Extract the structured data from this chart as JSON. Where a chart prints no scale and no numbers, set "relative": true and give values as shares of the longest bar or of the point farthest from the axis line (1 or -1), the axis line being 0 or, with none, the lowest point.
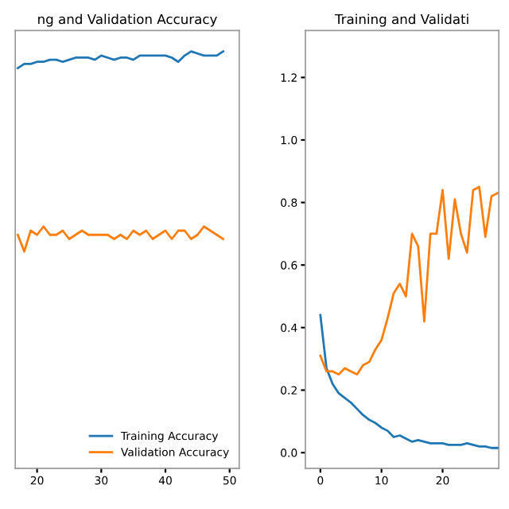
{
  "chart_data": [
    {
      "type": "line",
      "title": "ng and Validation Accuracy",
      "relative": true,
      "tick_labels": "x",
      "legend": "bottom right",
      "x": [
        17,
        18,
        19,
        20,
        21,
        22,
        23,
        24,
        25,
        26,
        27,
        28,
        29,
        30,
        31,
        32,
        33,
        34,
        35,
        36,
        37,
        38,
        39,
        40,
        41,
        42,
        43,
        44,
        45,
        46,
        47,
        48,
        49
      ],
      "xlim": [
        16.6,
        51.5
      ],
      "xticks": [
        20,
        30,
        40,
        50
      ],
      "series": [
        {
          "name": "Training Accuracy",
          "color": "#1f77b4",
          "values": [
            0.96,
            0.97,
            0.97,
            0.975,
            0.975,
            0.98,
            0.98,
            0.975,
            0.98,
            0.985,
            0.985,
            0.985,
            0.98,
            0.99,
            0.985,
            0.98,
            0.985,
            0.985,
            0.98,
            0.99,
            0.99,
            0.99,
            0.99,
            0.99,
            0.985,
            0.975,
            0.99,
            1,
            0.995,
            0.99,
            0.99,
            0.99,
            1
          ]
        },
        {
          "name": "Validation Accuracy",
          "color": "#ff7f0e",
          "values": [
            0.56,
            0.52,
            0.57,
            0.56,
            0.58,
            0.56,
            0.56,
            0.57,
            0.55,
            0.56,
            0.57,
            0.56,
            0.56,
            0.56,
            0.56,
            0.55,
            0.56,
            0.55,
            0.57,
            0.56,
            0.57,
            0.55,
            0.56,
            0.57,
            0.55,
            0.57,
            0.57,
            0.55,
            0.56,
            0.58,
            0.57,
            0.56,
            0.55
          ]
        }
      ]
    },
    {
      "type": "line",
      "title": "Training and Validati",
      "x": [
        0,
        1,
        2,
        3,
        4,
        5,
        6,
        7,
        8,
        9,
        10,
        11,
        12,
        13,
        14,
        15,
        16,
        17,
        18,
        19,
        20,
        21,
        22,
        23,
        24,
        25,
        26,
        27,
        28,
        29
      ],
      "xlim": [
        -2.45,
        29.2
      ],
      "xticks": [
        0,
        10,
        20
      ],
      "ylim": [
        -0.05,
        1.35
      ],
      "yticks": [
        {
          "value": 0,
          "label": "0.0"
        },
        0.2,
        0.4,
        0.6,
        0.8,
        {
          "value": 1,
          "label": "1.0"
        },
        1.2
      ],
      "series": [
        {
          "color": "#1f77b4",
          "values": [
            0.44,
            0.27,
            0.22,
            0.19,
            0.175,
            0.16,
            0.14,
            0.12,
            0.105,
            0.095,
            0.08,
            0.07,
            0.05,
            0.055,
            0.045,
            0.035,
            0.04,
            0.035,
            0.03,
            0.03,
            0.03,
            0.025,
            0.025,
            0.025,
            0.03,
            0.025,
            0.02,
            0.02,
            0.015,
            0.015
          ]
        },
        {
          "color": "#ff7f0e",
          "values": [
            0.31,
            0.26,
            0.26,
            0.25,
            0.27,
            0.26,
            0.25,
            0.28,
            0.29,
            0.33,
            0.36,
            0.43,
            0.51,
            0.54,
            0.5,
            0.7,
            0.66,
            0.42,
            0.7,
            0.7,
            0.84,
            0.62,
            0.81,
            0.7,
            0.64,
            0.84,
            0.85,
            0.69,
            0.82,
            0.83
          ]
        }
      ]
    }
  ]
}
